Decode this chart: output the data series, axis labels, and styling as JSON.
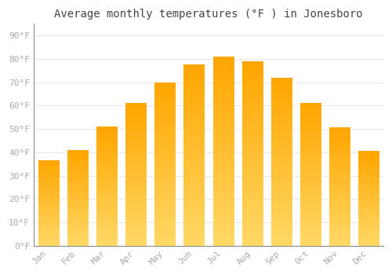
{
  "title": "Average monthly temperatures (°F ) in Jonesboro",
  "months": [
    "Jan",
    "Feb",
    "Mar",
    "Apr",
    "May",
    "Jun",
    "Jul",
    "Aug",
    "Sep",
    "Oct",
    "Nov",
    "Dec"
  ],
  "values": [
    36.5,
    41,
    51,
    61,
    70,
    77.5,
    81,
    79,
    72,
    61,
    50.5,
    40.5
  ],
  "bar_color_top": "#FFA500",
  "bar_color_bottom": "#FFD966",
  "background_color": "#FFFFFF",
  "grid_color": "#E8E8E8",
  "tick_label_color": "#AAAAAA",
  "title_color": "#444444",
  "ylim": [
    0,
    95
  ],
  "yticks": [
    0,
    10,
    20,
    30,
    40,
    50,
    60,
    70,
    80,
    90
  ],
  "ytick_labels": [
    "0°F",
    "10°F",
    "20°F",
    "30°F",
    "40°F",
    "50°F",
    "60°F",
    "70°F",
    "80°F",
    "90°F"
  ],
  "title_fontsize": 10,
  "tick_fontsize": 8
}
